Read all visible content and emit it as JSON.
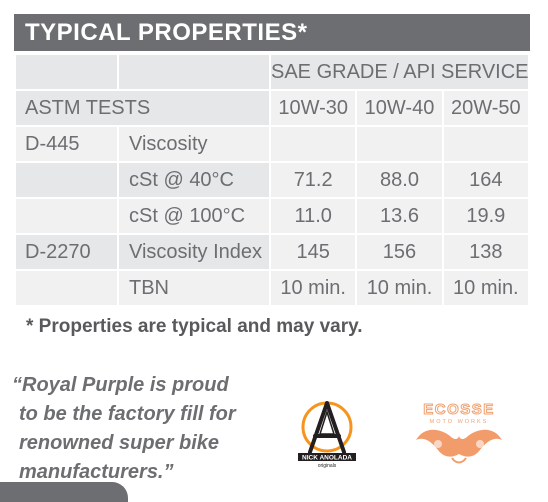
{
  "header": {
    "title": "TYPICAL PROPERTIES*"
  },
  "table": {
    "group_header": "SAE GRADE / API SERVICE",
    "columns": {
      "tests": "ASTM TESTS",
      "grades": [
        "10W-30",
        "10W-40",
        "20W-50"
      ]
    },
    "rows": [
      {
        "test": "D-445",
        "property": "Viscosity",
        "values": [
          "",
          "",
          ""
        ]
      },
      {
        "test": "",
        "property": "cSt @ 40°C",
        "values": [
          "71.2",
          "88.0",
          "164"
        ]
      },
      {
        "test": "",
        "property": "cSt @ 100°C",
        "values": [
          "11.0",
          "13.6",
          "19.9"
        ]
      },
      {
        "test": "D-2270",
        "property": "Viscosity Index",
        "values": [
          "145",
          "156",
          "138"
        ]
      },
      {
        "test": "",
        "property": "TBN",
        "values": [
          "10 min.",
          "10 min.",
          "10 min."
        ]
      }
    ]
  },
  "footnote": "* Properties are typical and may vary.",
  "quote": {
    "lines": [
      "“Royal Purple is proud",
      "to be the factory fill for",
      "renowned super bike",
      "manufacturers.”"
    ]
  },
  "logos": {
    "nick_anolada": {
      "name": "NICK ANOLADA",
      "sub": "originals"
    },
    "ecosse": {
      "name": "ECOSSE",
      "sub": "MOTO WORKS"
    }
  },
  "colors": {
    "header_bg": "#6d6e71",
    "row_dark": "#e6e7e8",
    "row_light": "#f1f1f2",
    "text": "#6d6e71",
    "ecosse_orange": "#f0a070",
    "nick_orange": "#f7941d"
  }
}
